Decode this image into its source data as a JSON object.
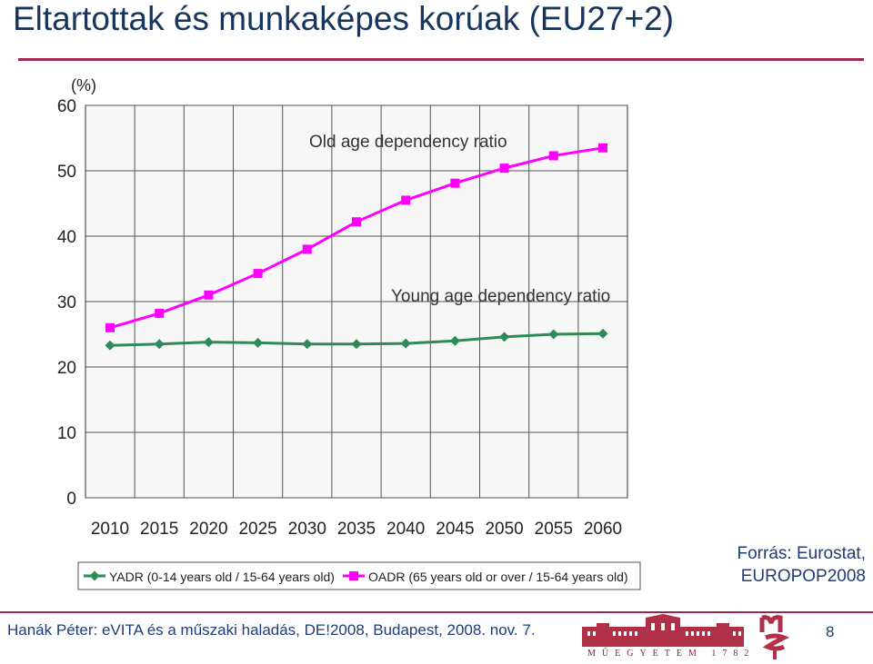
{
  "slide": {
    "title": "Eltartottak és munkaképes korúak (EU27+2)",
    "source_line1": "Forrás: Eurostat,",
    "source_line2": "EUROPOP2008",
    "footer": "Hanák Péter: eVITA és a műszaki haladás, DE!2008, Budapest, 2008. nov. 7.",
    "page_number": "8",
    "logo_caption": "MŰEGYETEM 1782",
    "colors": {
      "accent": "#a0284a",
      "text": "#1f3c78"
    }
  },
  "chart_data": {
    "type": "line",
    "ylabel": "(%)",
    "x": [
      "2010",
      "2015",
      "2020",
      "2025",
      "2030",
      "2035",
      "2040",
      "2045",
      "2050",
      "2055",
      "2060"
    ],
    "ylim": [
      0,
      60
    ],
    "yticks": [
      0,
      10,
      20,
      30,
      40,
      50,
      60
    ],
    "grid": true,
    "legend_position": "bottom",
    "annotations": [
      "Old age dependency ratio",
      "Young age dependency ratio"
    ],
    "series": [
      {
        "name": "YADR (0-14 years old / 15-64 years old)",
        "color": "#2e8b57",
        "marker": "diamond",
        "values": [
          23.3,
          23.5,
          23.8,
          23.7,
          23.5,
          23.5,
          23.6,
          24.0,
          24.6,
          25.0,
          25.1
        ]
      },
      {
        "name": "OADR (65 years old or over / 15-64 years old)",
        "color": "#ff00ff",
        "marker": "square",
        "values": [
          26.0,
          28.2,
          31.0,
          34.3,
          38.0,
          42.2,
          45.5,
          48.1,
          50.4,
          52.3,
          53.5
        ]
      }
    ]
  }
}
